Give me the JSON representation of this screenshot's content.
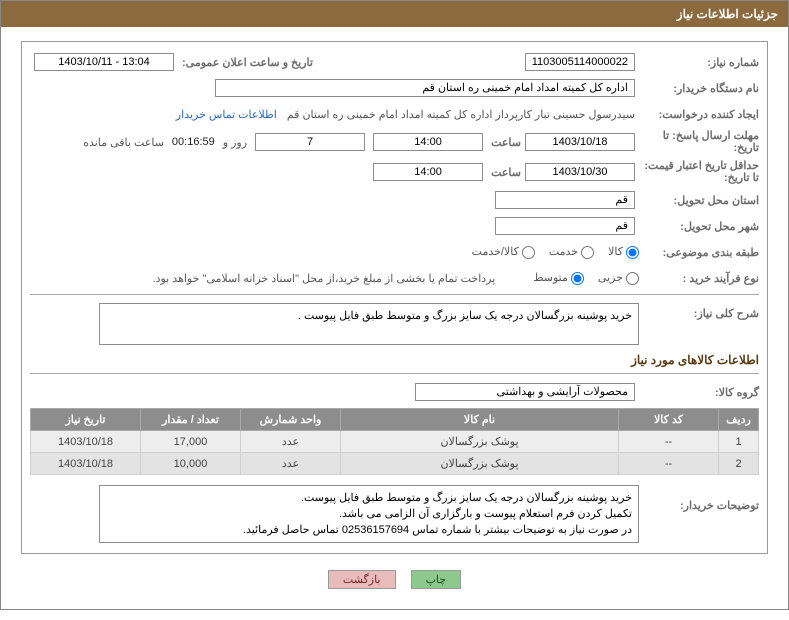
{
  "header_title": "جزئیات اطلاعات نیاز",
  "req_no_label": "شماره نیاز:",
  "req_no": "1103005114000022",
  "announce_label": "تاریخ و ساعت اعلان عمومی:",
  "announce": "13:04 - 1403/10/11",
  "buyer_org_label": "نام دستگاه خریدار:",
  "buyer_org": "اداره کل کمیته امداد امام خمینی  ره  استان قم",
  "creator_label": "ایجاد کننده درخواست:",
  "creator": "سیدرسول حسینی تبار کارپرداز اداره کل کمیته امداد امام خمینی  ره  استان قم",
  "contact_link": "اطلاعات تماس خریدار",
  "deadline_label": "مهلت ارسال پاسخ: تا تاریخ:",
  "deadline_date": "1403/10/18",
  "time_label": "ساعت",
  "deadline_time": "14:00",
  "days_val": "7",
  "days_and": "روز و",
  "remain_time": "00:16:59",
  "remain_label": "ساعت باقی مانده",
  "validity_label": "حداقل تاریخ اعتبار قیمت: تا تاریخ:",
  "validity_date": "1403/10/30",
  "validity_time": "14:00",
  "delivery_province_label": "استان محل تحویل:",
  "delivery_province": "قم",
  "delivery_city_label": "شهر محل تحویل:",
  "delivery_city": "قم",
  "category_label": "طبقه بندی موضوعی:",
  "cat_opts": {
    "a": "کالا",
    "b": "خدمت",
    "c": "کالا/خدمت"
  },
  "cat_checked": "a",
  "process_label": "نوع فرآیند خرید :",
  "proc_opts": {
    "a": "جزیی",
    "b": "متوسط"
  },
  "proc_checked": "b",
  "proc_note": "پرداخت تمام یا بخشی از مبلغ خرید،از محل \"اسناد خزانه اسلامی\" خواهد بود.",
  "desc_label": "شرح کلی نیاز:",
  "desc_text": "خرید پوشینه بزرگسالان درجه یک سایز بزرگ و متوسط طبق فایل پیوست .",
  "goods_section_title": "اطلاعات کالاهای مورد نیاز",
  "group_label": "گروه کالا:",
  "group_value": "محصولات آرایشی و بهداشتی",
  "table": {
    "headers": [
      "ردیف",
      "کد کالا",
      "نام کالا",
      "واحد شمارش",
      "تعداد / مقدار",
      "تاریخ نیاز"
    ],
    "col_widths": [
      "40px",
      "100px",
      "auto",
      "100px",
      "100px",
      "110px"
    ],
    "rows": [
      [
        "1",
        "--",
        "پوشک بزرگسالان",
        "عدد",
        "17,000",
        "1403/10/18"
      ],
      [
        "2",
        "--",
        "پوشک بزرگسالان",
        "عدد",
        "10,000",
        "1403/10/18"
      ]
    ]
  },
  "buyer_notes_label": "توضیحات خریدار:",
  "buyer_notes_lines": [
    "خرید پوشینه بزرگسالان درجه یک سایز بزرگ و متوسط طبق فایل پیوست.",
    "تکمیل کردن فرم استعلام پیوست و بارگزاری آن الزامی می باشد.",
    "در صورت نیاز به توضیحات بیشتر با شماره تماس 02536157694 تماس حاصل فرمائید."
  ],
  "btn_print": "چاپ",
  "btn_back": "بازگشت",
  "colors": {
    "header_bg": "#8c6a3e",
    "th_bg": "#8d8d8d",
    "btn_green": "#8dc98d",
    "btn_red": "#e9bcbc"
  }
}
